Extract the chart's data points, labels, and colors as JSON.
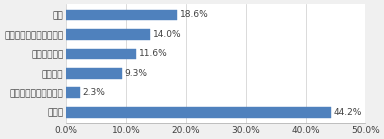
{
  "categories": [
    "その他",
    "勤怠管理のデジタル化",
    "在宅勤務",
    "体暇取得促進",
    "情報収集・検討会の設置",
    "時短"
  ],
  "values": [
    44.2,
    2.3,
    9.3,
    11.6,
    14.0,
    18.6
  ],
  "bar_color": "#4f81bd",
  "bar_edge_color": "#4f81bd",
  "background_color": "#f0f0f0",
  "plot_bg_color": "#ffffff",
  "xlim": [
    0,
    50
  ],
  "xtick_labels": [
    "0.0%",
    "10.0%",
    "20.0%",
    "30.0%",
    "40.0%",
    "50.0%"
  ],
  "xtick_values": [
    0,
    10,
    20,
    30,
    40,
    50
  ],
  "value_labels": [
    "44.2%",
    "2.3%",
    "9.3%",
    "11.6%",
    "14.0%",
    "18.6%"
  ],
  "bar_height": 0.55,
  "label_fontsize": 6.5,
  "tick_fontsize": 6.5,
  "text_color": "#404040"
}
